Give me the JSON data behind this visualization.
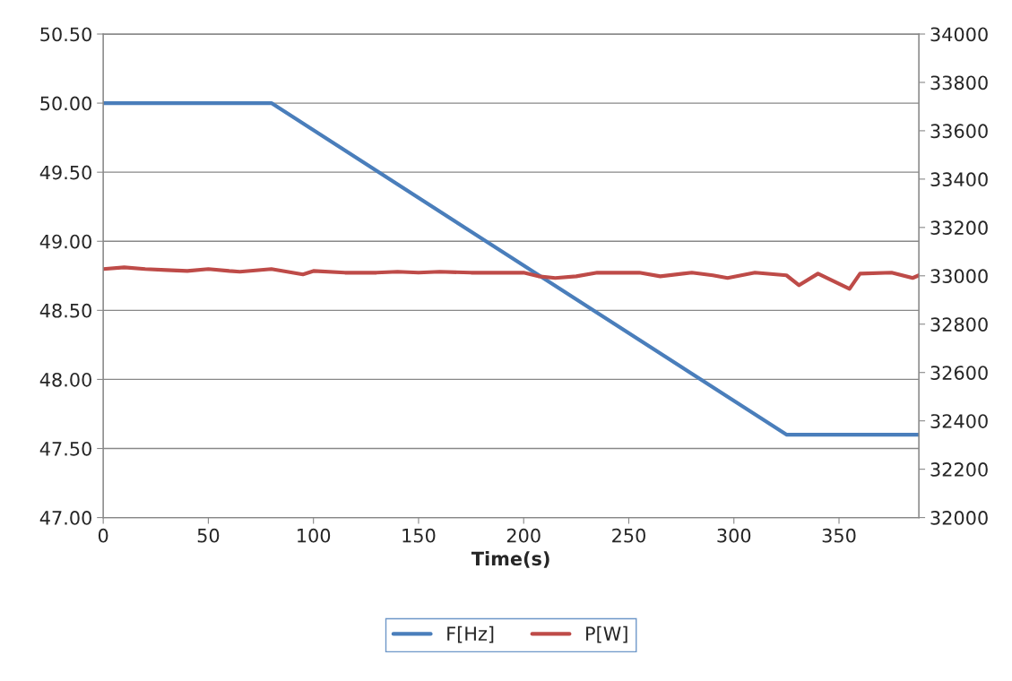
{
  "chart_data": {
    "type": "line",
    "xlabel": "Time(s)",
    "xlim": [
      0,
      388
    ],
    "xticks": [
      0,
      50,
      100,
      150,
      200,
      250,
      300,
      350
    ],
    "ylim": [
      47.0,
      50.5
    ],
    "yticks": [
      {
        "value": 47.0,
        "label": "47.00"
      },
      {
        "value": 47.5,
        "label": "47.50"
      },
      {
        "value": 48.0,
        "label": "48.00"
      },
      {
        "value": 48.5,
        "label": "48.50"
      },
      {
        "value": 49.0,
        "label": "49.00"
      },
      {
        "value": 49.5,
        "label": "49.50"
      },
      {
        "value": 50.0,
        "label": "50.00"
      },
      {
        "value": 50.5,
        "label": "50.50"
      }
    ],
    "y2lim": [
      32000,
      34000
    ],
    "y2ticks": [
      32000,
      32200,
      32400,
      32600,
      32800,
      33000,
      33200,
      33400,
      33600,
      33800,
      34000
    ],
    "grid": "y",
    "legend": "bottom",
    "marker": "none",
    "line_style": "solid",
    "series": [
      {
        "name": "F[Hz]",
        "color": "#4a7ebb",
        "x": [
          0,
          80,
          325,
          388
        ],
        "values": [
          50.0,
          50.0,
          47.6,
          47.6
        ]
      },
      {
        "name": "P[W]",
        "color": "#be4b48",
        "axis": "y2",
        "x": [
          0,
          10,
          20,
          30,
          40,
          50,
          60,
          65,
          80,
          95,
          100,
          115,
          130,
          140,
          150,
          160,
          175,
          185,
          200,
          207,
          215,
          225,
          235,
          250,
          255,
          265,
          280,
          290,
          297,
          310,
          325,
          331,
          340,
          355,
          360,
          375,
          385,
          388
        ],
        "values": [
          33028,
          33035,
          33028,
          33024,
          33020,
          33028,
          33020,
          33017,
          33028,
          33006,
          33020,
          33013,
          33013,
          33017,
          33013,
          33017,
          33013,
          33013,
          33013,
          32998,
          32991,
          32998,
          33013,
          33013,
          33013,
          32998,
          33013,
          33002,
          32991,
          33013,
          33002,
          32961,
          33009,
          32946,
          33009,
          33013,
          32991,
          33002
        ]
      }
    ]
  }
}
